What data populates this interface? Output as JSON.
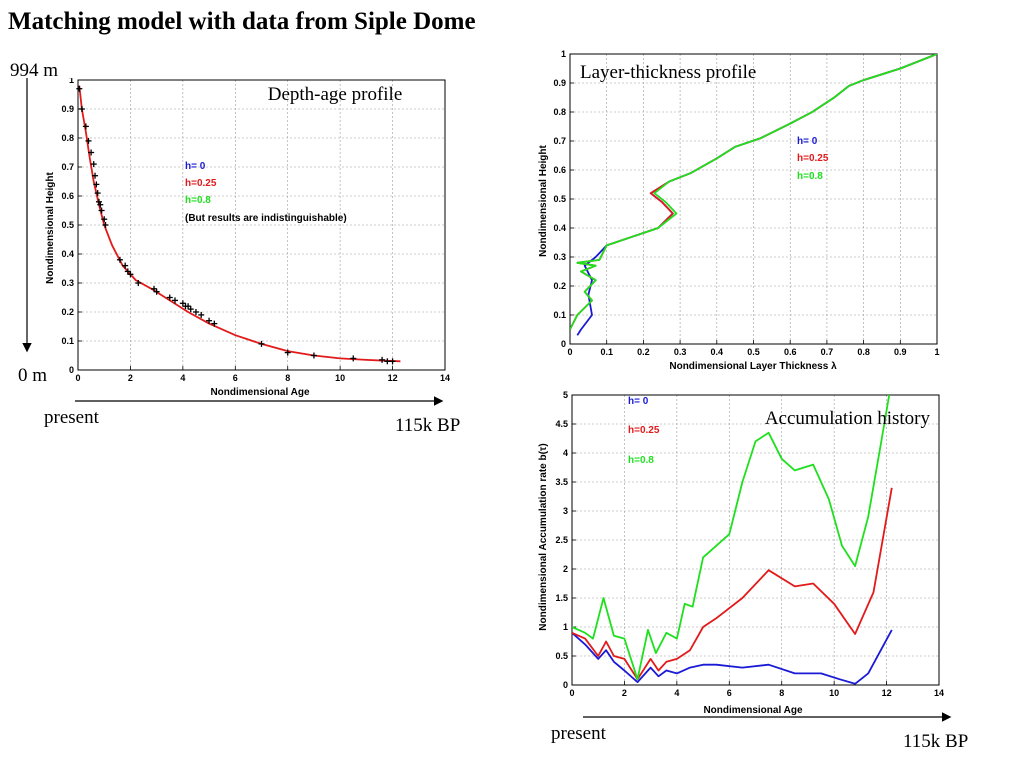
{
  "slide": {
    "title": "Matching model with data from  Siple Dome",
    "depth_top": "994 m",
    "depth_bottom": "0 m",
    "present_1": "present",
    "bp_1": "115k BP",
    "present_2": "present",
    "bp_2": "115k BP"
  },
  "colors": {
    "h0": "#1a1ad6",
    "h025": "#e21a1a",
    "h08": "#1ee01e",
    "points": "#000000",
    "grid": "#9a9a9a"
  },
  "chart_data": [
    {
      "type": "line",
      "title": "Depth-age profile",
      "xlabel": "Nondimensional Age",
      "ylabel": "Nondimensional Height",
      "xlim": [
        0,
        14
      ],
      "ylim": [
        0,
        1
      ],
      "xticks": [
        "0",
        "2",
        "4",
        "6",
        "8",
        "10",
        "12",
        "14"
      ],
      "yticks": [
        "0",
        "0.1",
        "0.2",
        "0.3",
        "0.4",
        "0.5",
        "0.6",
        "0.7",
        "0.8",
        "0.9",
        "1"
      ],
      "grid": true,
      "legend": [
        "h= 0",
        "h=0.25",
        "h=0.8",
        "(But results are indistinguishable)"
      ],
      "legend_position": "upper-center",
      "series": [
        {
          "name": "h=0.25",
          "color": "red",
          "x": [
            0.05,
            0.15,
            0.3,
            0.45,
            0.6,
            0.8,
            1.0,
            1.3,
            1.7,
            2.2,
            2.8,
            3.5,
            4.2,
            5.0,
            6.0,
            7.0,
            8.0,
            9.0,
            10.0,
            11.0,
            12.3
          ],
          "y": [
            0.98,
            0.9,
            0.82,
            0.73,
            0.65,
            0.57,
            0.5,
            0.43,
            0.36,
            0.31,
            0.28,
            0.24,
            0.2,
            0.16,
            0.12,
            0.09,
            0.065,
            0.05,
            0.04,
            0.035,
            0.03
          ]
        }
      ],
      "points": {
        "x": [
          0.05,
          0.15,
          0.3,
          0.4,
          0.5,
          0.6,
          0.65,
          0.7,
          0.75,
          0.8,
          0.85,
          0.9,
          1.0,
          1.05,
          1.6,
          1.8,
          1.9,
          2.0,
          2.3,
          2.9,
          3.0,
          3.5,
          3.7,
          4.0,
          4.1,
          4.2,
          4.3,
          4.5,
          4.7,
          5.0,
          5.2,
          7.0,
          8.0,
          9.0,
          10.5,
          11.6,
          11.8,
          12.0
        ],
        "y": [
          0.97,
          0.9,
          0.84,
          0.79,
          0.75,
          0.71,
          0.67,
          0.64,
          0.61,
          0.58,
          0.57,
          0.55,
          0.52,
          0.5,
          0.38,
          0.36,
          0.34,
          0.33,
          0.3,
          0.28,
          0.27,
          0.25,
          0.24,
          0.23,
          0.22,
          0.22,
          0.21,
          0.2,
          0.19,
          0.17,
          0.16,
          0.09,
          0.06,
          0.05,
          0.04,
          0.035,
          0.03,
          0.03
        ]
      }
    },
    {
      "type": "line",
      "title": "Layer-thickness profile",
      "xlabel": "Nondimensional Layer Thickness  λ",
      "ylabel": "Nondimensional Height",
      "xlim": [
        0,
        1
      ],
      "ylim": [
        0,
        1
      ],
      "xticks": [
        "0",
        "0.1",
        "0.2",
        "0.3",
        "0.4",
        "0.5",
        "0.6",
        "0.7",
        "0.8",
        "0.9",
        "1"
      ],
      "yticks": [
        "0",
        "0.1",
        "0.2",
        "0.3",
        "0.4",
        "0.5",
        "0.6",
        "0.7",
        "0.8",
        "0.9",
        "1"
      ],
      "grid": true,
      "legend": [
        "h= 0",
        "h=0.25",
        "h=0.8"
      ],
      "legend_position": "right",
      "series": [
        {
          "name": "h= 0",
          "color": "blue",
          "x": [
            0.02,
            0.03,
            0.06,
            0.05,
            0.06,
            0.04,
            0.07,
            0.1,
            0.17,
            0.24,
            0.28,
            0.25,
            0.22,
            0.27,
            0.33,
            0.4,
            0.45,
            0.52,
            0.6,
            0.66,
            0.72,
            0.76,
            0.8,
            0.9,
            1.0
          ],
          "y": [
            0.03,
            0.05,
            0.1,
            0.17,
            0.22,
            0.27,
            0.3,
            0.34,
            0.37,
            0.4,
            0.45,
            0.49,
            0.52,
            0.56,
            0.59,
            0.64,
            0.68,
            0.71,
            0.76,
            0.8,
            0.85,
            0.89,
            0.91,
            0.95,
            1.0
          ]
        },
        {
          "name": "h=0.25",
          "color": "red",
          "x": [
            0.0,
            0.02,
            0.06,
            0.04,
            0.07,
            0.03,
            0.07,
            0.02,
            0.08,
            0.1,
            0.17,
            0.24,
            0.28,
            0.25,
            0.22,
            0.27,
            0.33,
            0.4,
            0.45,
            0.52,
            0.6,
            0.66,
            0.72,
            0.76,
            0.8,
            0.9,
            1.0
          ],
          "y": [
            0.05,
            0.1,
            0.15,
            0.18,
            0.22,
            0.25,
            0.27,
            0.28,
            0.29,
            0.34,
            0.37,
            0.4,
            0.45,
            0.49,
            0.52,
            0.56,
            0.59,
            0.64,
            0.68,
            0.71,
            0.76,
            0.8,
            0.85,
            0.89,
            0.91,
            0.95,
            1.0
          ]
        },
        {
          "name": "h=0.8",
          "color": "green",
          "x": [
            0.0,
            0.02,
            0.06,
            0.04,
            0.07,
            0.03,
            0.07,
            0.02,
            0.08,
            0.1,
            0.17,
            0.24,
            0.29,
            0.26,
            0.23,
            0.27,
            0.33,
            0.4,
            0.45,
            0.52,
            0.6,
            0.66,
            0.72,
            0.76,
            0.8,
            0.9,
            1.0
          ],
          "y": [
            0.05,
            0.1,
            0.15,
            0.18,
            0.22,
            0.25,
            0.27,
            0.28,
            0.29,
            0.34,
            0.37,
            0.4,
            0.45,
            0.49,
            0.52,
            0.56,
            0.59,
            0.64,
            0.68,
            0.71,
            0.76,
            0.8,
            0.85,
            0.89,
            0.91,
            0.95,
            1.0
          ]
        }
      ]
    },
    {
      "type": "line",
      "title": "Accumulation history",
      "xlabel": "Nondimensional Age",
      "ylabel": "Nondimensional Accumulation rate b(τ)",
      "xlim": [
        0,
        14
      ],
      "ylim": [
        0,
        5
      ],
      "xticks": [
        "0",
        "2",
        "4",
        "6",
        "8",
        "10",
        "12",
        "14"
      ],
      "yticks": [
        "0",
        "0.5",
        "1",
        "1.5",
        "2",
        "2.5",
        "3",
        "3.5",
        "4",
        "4.5",
        "5"
      ],
      "grid": true,
      "legend": [
        "h= 0",
        "h=0.25",
        "h=0.8"
      ],
      "legend_position": "top-left",
      "series": [
        {
          "name": "h= 0",
          "color": "blue",
          "x": [
            0,
            0.5,
            1.0,
            1.3,
            1.6,
            2.0,
            2.5,
            3.0,
            3.3,
            3.6,
            4.0,
            4.5,
            5.0,
            5.5,
            6.5,
            7.5,
            8.5,
            9.5,
            10.2,
            10.8,
            11.3,
            12.2
          ],
          "y": [
            0.9,
            0.7,
            0.45,
            0.6,
            0.4,
            0.25,
            0.05,
            0.3,
            0.15,
            0.25,
            0.2,
            0.3,
            0.35,
            0.35,
            0.3,
            0.35,
            0.2,
            0.2,
            0.1,
            0.02,
            0.2,
            0.95
          ]
        },
        {
          "name": "h=0.25",
          "color": "red",
          "x": [
            0,
            0.5,
            1.0,
            1.3,
            1.6,
            2.0,
            2.5,
            3.0,
            3.3,
            3.6,
            4.0,
            4.5,
            5.0,
            5.5,
            6.5,
            7.5,
            8.5,
            9.2,
            10.0,
            10.8,
            11.5,
            12.2
          ],
          "y": [
            0.9,
            0.8,
            0.5,
            0.75,
            0.5,
            0.45,
            0.1,
            0.45,
            0.25,
            0.4,
            0.45,
            0.6,
            1.0,
            1.15,
            1.5,
            1.98,
            1.7,
            1.75,
            1.4,
            0.88,
            1.6,
            3.4
          ]
        },
        {
          "name": "h=0.8",
          "color": "green",
          "x": [
            0,
            0.5,
            0.8,
            1.2,
            1.6,
            2.0,
            2.5,
            2.9,
            3.2,
            3.6,
            4.0,
            4.3,
            4.6,
            5.0,
            5.5,
            6.0,
            6.5,
            7.0,
            7.5,
            8.0,
            8.5,
            9.2,
            9.8,
            10.3,
            10.8,
            11.3,
            11.8,
            12.1
          ],
          "y": [
            1.0,
            0.9,
            0.8,
            1.5,
            0.85,
            0.8,
            0.1,
            0.95,
            0.55,
            0.9,
            0.8,
            1.4,
            1.35,
            2.2,
            2.4,
            2.6,
            3.5,
            4.2,
            4.35,
            3.9,
            3.7,
            3.8,
            3.2,
            2.4,
            2.05,
            2.9,
            4.2,
            5.0
          ]
        }
      ]
    }
  ]
}
